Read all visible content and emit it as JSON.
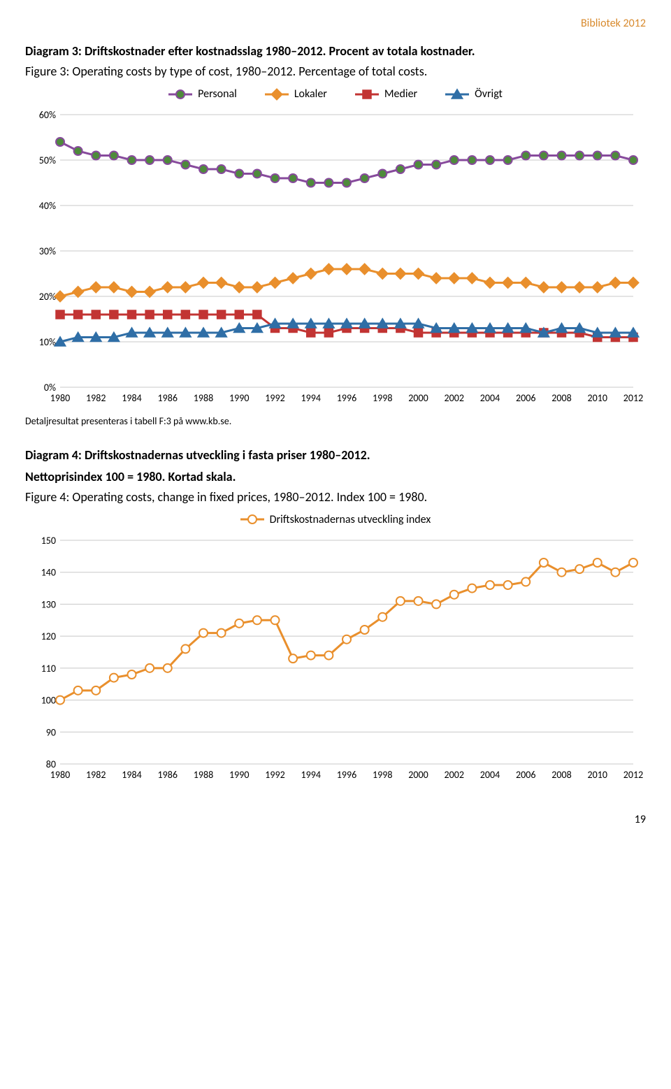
{
  "header": {
    "tag": "Bibliotek 2012"
  },
  "chart3": {
    "title_bold": "Diagram 3: Driftskostnader efter kostnadsslag 1980–2012. Procent av totala kostnader.",
    "subtitle": "Figure 3: Operating costs by type of cost, 1980–2012. Percentage of total costs.",
    "type": "line-multi",
    "x_labels": [
      "1980",
      "1982",
      "1984",
      "1986",
      "1988",
      "1990",
      "1992",
      "1994",
      "1996",
      "1998",
      "2000",
      "2002",
      "2004",
      "2006",
      "2008",
      "2010",
      "2012"
    ],
    "x_years": [
      1980,
      1981,
      1982,
      1983,
      1984,
      1985,
      1986,
      1987,
      1988,
      1989,
      1990,
      1991,
      1992,
      1993,
      1994,
      1995,
      1996,
      1997,
      1998,
      1999,
      2000,
      2001,
      2002,
      2003,
      2004,
      2005,
      2006,
      2007,
      2008,
      2009,
      2010,
      2011,
      2012
    ],
    "ylim": [
      0,
      60
    ],
    "ytick_step": 10,
    "y_ticks": [
      "0%",
      "10%",
      "20%",
      "30%",
      "40%",
      "50%",
      "60%"
    ],
    "grid_color": "#c8c8c8",
    "bg": "#ffffff",
    "line_width": 3,
    "marker_size": 6,
    "series": [
      {
        "name": "Personal",
        "color": "#874a9c",
        "marker_fill": "#4e8b3b",
        "marker": "circle",
        "values": [
          54,
          52,
          51,
          51,
          50,
          50,
          50,
          49,
          48,
          48,
          47,
          47,
          46,
          46,
          45,
          45,
          45,
          46,
          47,
          48,
          49,
          49,
          50,
          50,
          50,
          50,
          51,
          51,
          51,
          51,
          51,
          51,
          50
        ]
      },
      {
        "name": "Lokaler",
        "color": "#e98f2c",
        "marker_fill": "#e98f2c",
        "marker": "diamond",
        "values": [
          20,
          21,
          22,
          22,
          21,
          21,
          22,
          22,
          23,
          23,
          22,
          22,
          23,
          24,
          25,
          26,
          26,
          26,
          25,
          25,
          25,
          24,
          24,
          24,
          23,
          23,
          23,
          22,
          22,
          22,
          22,
          23,
          23
        ]
      },
      {
        "name": "Medier",
        "color": "#c23433",
        "marker_fill": "#c23433",
        "marker": "square",
        "values": [
          16,
          16,
          16,
          16,
          16,
          16,
          16,
          16,
          16,
          16,
          16,
          16,
          13,
          13,
          12,
          12,
          13,
          13,
          13,
          13,
          12,
          12,
          12,
          12,
          12,
          12,
          12,
          12,
          12,
          12,
          11,
          11,
          11
        ]
      },
      {
        "name": "Övrigt",
        "color": "#2f6ea6",
        "marker_fill": "#2f6ea6",
        "marker": "triangle",
        "values": [
          10,
          11,
          11,
          11,
          12,
          12,
          12,
          12,
          12,
          12,
          13,
          13,
          14,
          14,
          14,
          14,
          14,
          14,
          14,
          14,
          14,
          13,
          13,
          13,
          13,
          13,
          13,
          12,
          13,
          13,
          12,
          12,
          12
        ]
      }
    ],
    "legend_labels": {
      "personal": "Personal",
      "lokaler": "Lokaler",
      "medier": "Medier",
      "ovrigt": "Övrigt"
    },
    "note": "Detaljresultat presenteras i tabell F:3 på www.kb.se."
  },
  "chart4": {
    "title_bold1": "Diagram 4: Driftskostnadernas utveckling i fasta priser 1980–2012.",
    "title_bold2": "Nettoprisindex 100 = 1980. Kortad skala.",
    "subtitle": "Figure 4: Operating costs, change in fixed prices, 1980–2012. Index 100 = 1980.",
    "legend_label": "Driftskostnadernas utveckling index",
    "type": "line",
    "x_labels": [
      "1980",
      "1982",
      "1984",
      "1986",
      "1988",
      "1990",
      "1992",
      "1994",
      "1996",
      "1998",
      "2000",
      "2002",
      "2004",
      "2006",
      "2008",
      "2010",
      "2012"
    ],
    "x_years": [
      1980,
      1981,
      1982,
      1983,
      1984,
      1985,
      1986,
      1987,
      1988,
      1989,
      1990,
      1991,
      1992,
      1993,
      1994,
      1995,
      1996,
      1997,
      1998,
      1999,
      2000,
      2001,
      2002,
      2003,
      2004,
      2005,
      2006,
      2007,
      2008,
      2009,
      2010,
      2011,
      2012
    ],
    "ylim": [
      80,
      150
    ],
    "ytick_step": 10,
    "y_ticks": [
      "80",
      "90",
      "100",
      "110",
      "120",
      "130",
      "140",
      "150"
    ],
    "grid_color": "#c8c8c8",
    "bg": "#ffffff",
    "line_width": 3,
    "marker_size": 6,
    "series": {
      "name": "Driftskostnadernas utveckling index",
      "color": "#e98f2c",
      "marker_fill": "#ffffff",
      "marker_stroke": "#e98f2c",
      "marker": "circle",
      "values": [
        100,
        103,
        103,
        107,
        108,
        110,
        110,
        116,
        121,
        121,
        124,
        125,
        125,
        113,
        114,
        114,
        119,
        122,
        126,
        131,
        131,
        130,
        133,
        135,
        136,
        136,
        137,
        143,
        140,
        141,
        143,
        140,
        143
      ]
    }
  },
  "page_number": "19"
}
